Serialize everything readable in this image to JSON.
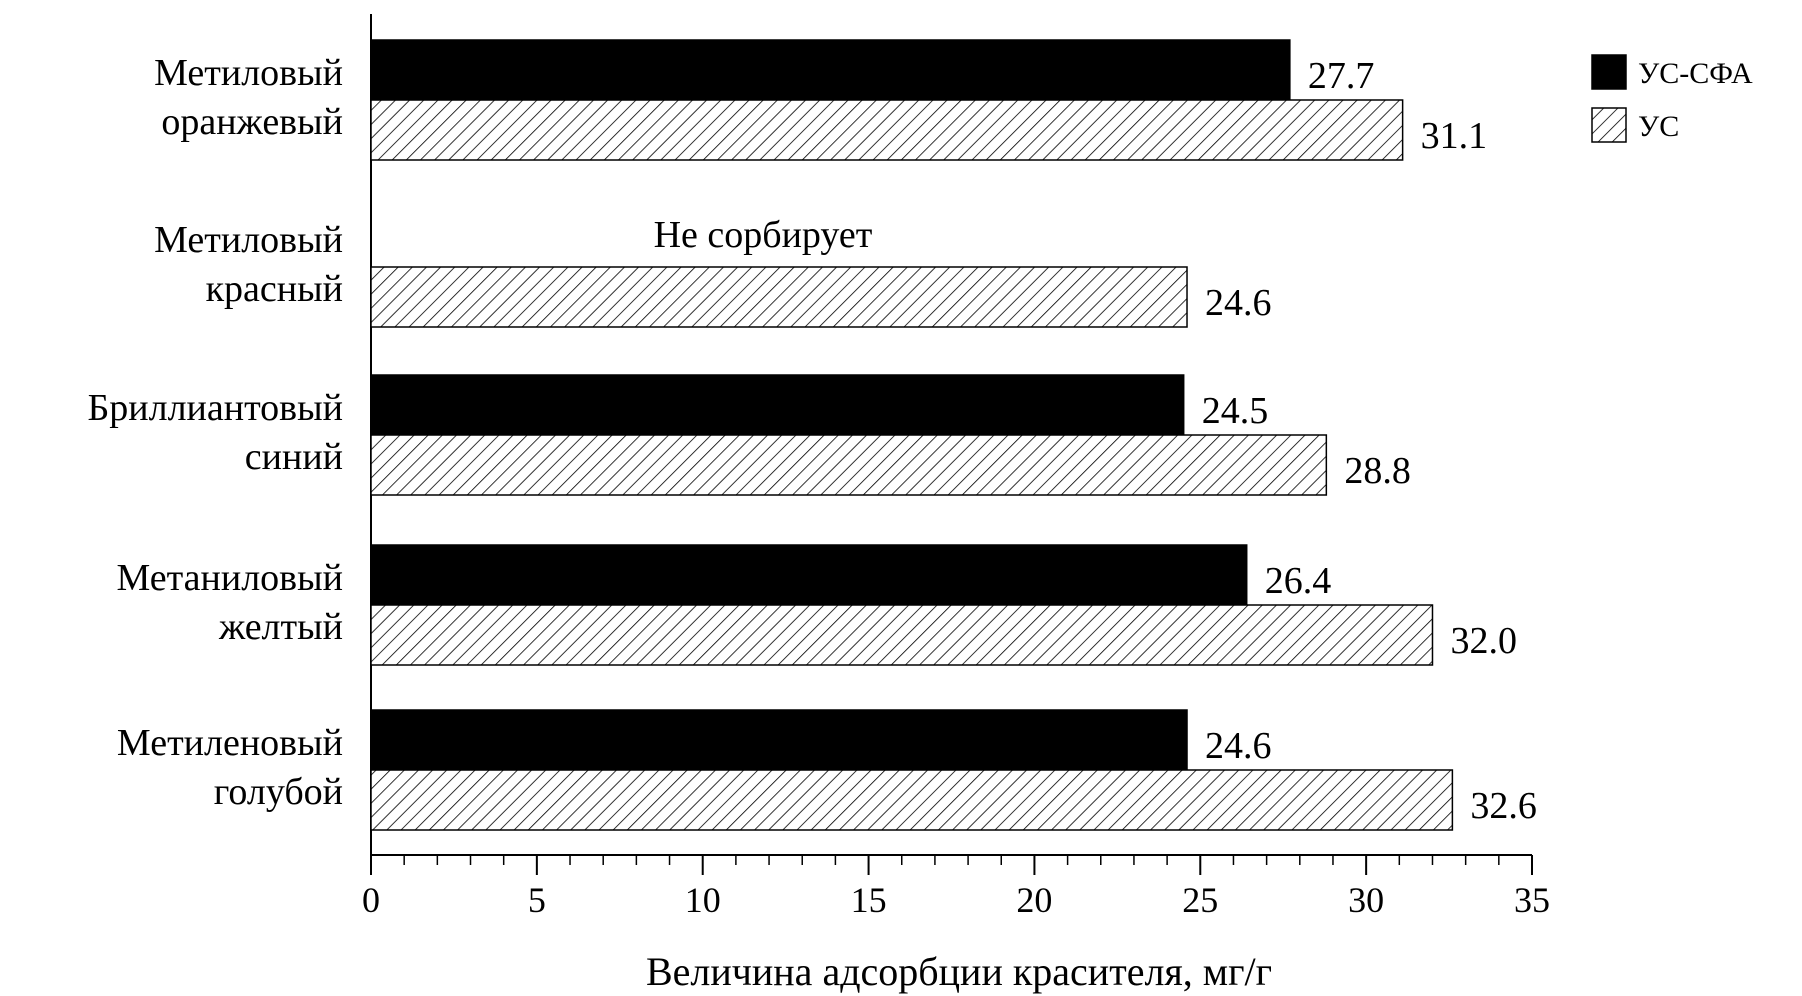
{
  "chart_data": {
    "type": "bar",
    "orientation": "horizontal",
    "categories": [
      [
        "Метиловый",
        "оранжевый"
      ],
      [
        "Метиловый",
        "красный"
      ],
      [
        "Бриллиантовый",
        "синий"
      ],
      [
        "Метаниловый",
        "желтый"
      ],
      [
        "Метиленовый",
        "голубой"
      ]
    ],
    "series": [
      {
        "name": "УС-СФА",
        "fill": "solid",
        "color": "#000000",
        "values": [
          27.7,
          null,
          24.5,
          26.4,
          24.6
        ]
      },
      {
        "name": "УС",
        "fill": "hatched",
        "color": "#000000",
        "values": [
          31.1,
          24.6,
          28.8,
          32.0,
          32.6
        ]
      }
    ],
    "value_labels": [
      [
        "27.7",
        null,
        "24.5",
        "26.4",
        "24.6"
      ],
      [
        "31.1",
        "24.6",
        "28.8",
        "32.0",
        "32.6"
      ]
    ],
    "annotations": [
      {
        "category_index": 1,
        "series_index": 0,
        "text": "Не сорбирует"
      }
    ],
    "xlabel": "Величина адсорбции красителя, мг/г",
    "ylabel": "",
    "xlim": [
      0,
      35
    ],
    "x_ticks": [
      0,
      5,
      10,
      15,
      20,
      25,
      30,
      35
    ],
    "x_minor_step": 1,
    "grid": false,
    "legend_position": "top-right"
  }
}
